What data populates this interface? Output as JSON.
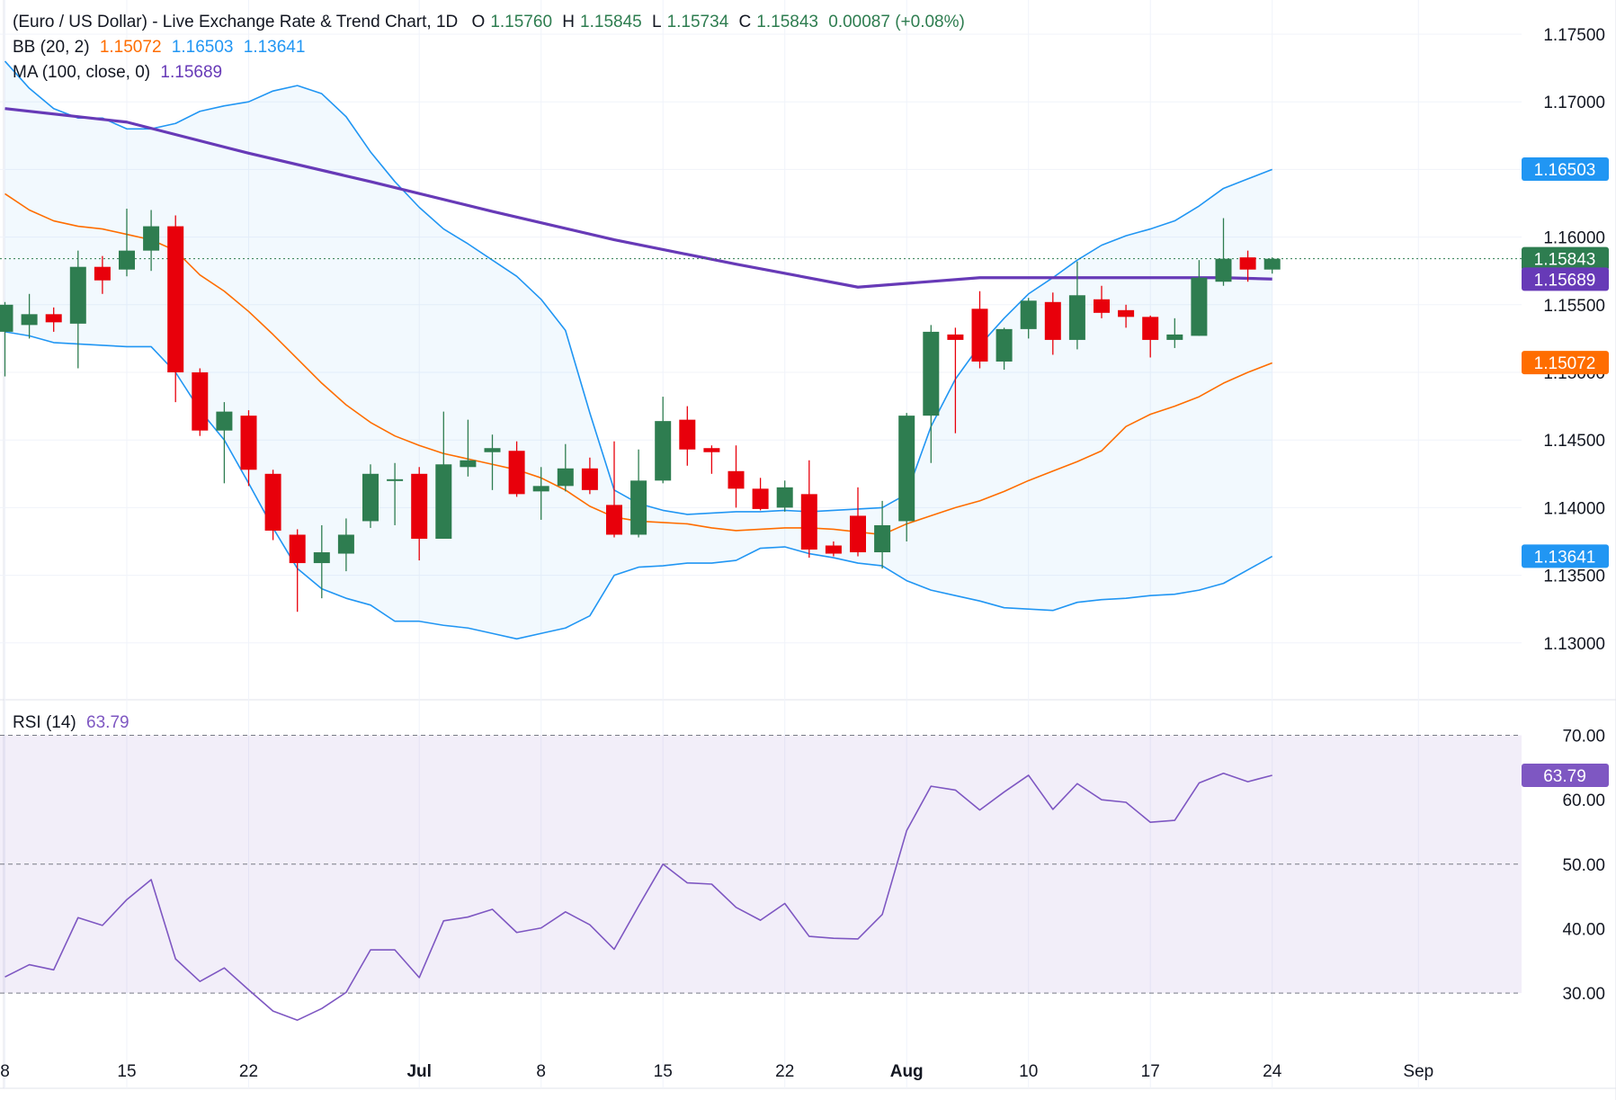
{
  "header": {
    "title": "(Euro / US Dollar) - Live Exchange Rate & Trend Chart, 1D",
    "ohlc": [
      {
        "label": "O",
        "value": "1.15760"
      },
      {
        "label": "H",
        "value": "1.15845"
      },
      {
        "label": "L",
        "value": "1.15734"
      },
      {
        "label": "C",
        "value": "1.15843"
      }
    ],
    "change": "0.00087 (+0.08%)",
    "bb_label": "BB (20, 2)",
    "bb_mid": "1.15072",
    "bb_upper": "1.16503",
    "bb_lower": "1.13641",
    "ma_label": "MA (100, close, 0)",
    "ma_value": "1.15689",
    "rsi_label": "RSI (14)",
    "rsi_value": "63.79"
  },
  "colors": {
    "up": "#2e7d50",
    "down": "#e8000b",
    "bb_band": "#2196f3",
    "bb_mid": "#ff6d00",
    "ma": "#673ab7",
    "rsi": "#7e57c2",
    "text": "#131722",
    "grid": "#f0f3fa"
  },
  "chart_data": [
    {
      "type": "candlestick",
      "title": "(Euro / US Dollar) - Live Exchange Rate & Trend Chart, 1D",
      "ylim": [
        1.1275,
        1.178
      ],
      "y_ticks": [
        "1.13000",
        "1.13500",
        "1.14000",
        "1.14500",
        "1.15000",
        "1.15500",
        "1.16000",
        "1.16500",
        "1.17000",
        "1.17500"
      ],
      "x_tick_labels": [
        {
          "label": "8",
          "i": -5
        },
        {
          "label": "15",
          "i": 0
        },
        {
          "label": "22",
          "i": 5
        },
        {
          "label": "Jul",
          "i": 12
        },
        {
          "label": "8",
          "i": 17
        },
        {
          "label": "15",
          "i": 22
        },
        {
          "label": "22",
          "i": 27
        },
        {
          "label": "Aug",
          "i": 32
        },
        {
          "label": "10",
          "i": 37
        },
        {
          "label": "17",
          "i": 42
        },
        {
          "label": "24",
          "i": 47
        },
        {
          "label": "Sep",
          "i": 53
        }
      ],
      "candles": [
        {
          "i": -5,
          "o": 1.153,
          "h": 1.1552,
          "l": 1.1497,
          "c": 1.155
        },
        {
          "i": -4,
          "o": 1.1535,
          "h": 1.1558,
          "l": 1.1525,
          "c": 1.1543
        },
        {
          "i": -3,
          "o": 1.1543,
          "h": 1.1548,
          "l": 1.153,
          "c": 1.1537
        },
        {
          "i": -2,
          "o": 1.1536,
          "h": 1.159,
          "l": 1.1503,
          "c": 1.1578
        },
        {
          "i": -1,
          "o": 1.1578,
          "h": 1.1586,
          "l": 1.1558,
          "c": 1.1568
        },
        {
          "i": 0,
          "o": 1.1576,
          "h": 1.1621,
          "l": 1.1571,
          "c": 1.159
        },
        {
          "i": 1,
          "o": 1.159,
          "h": 1.162,
          "l": 1.1575,
          "c": 1.1608
        },
        {
          "i": 2,
          "o": 1.1608,
          "h": 1.1616,
          "l": 1.1478,
          "c": 1.15
        },
        {
          "i": 3,
          "o": 1.15,
          "h": 1.1503,
          "l": 1.1453,
          "c": 1.1457
        },
        {
          "i": 4,
          "o": 1.1457,
          "h": 1.1478,
          "l": 1.1418,
          "c": 1.1471
        },
        {
          "i": 5,
          "o": 1.1468,
          "h": 1.1472,
          "l": 1.1416,
          "c": 1.1428
        },
        {
          "i": 6,
          "o": 1.1425,
          "h": 1.1428,
          "l": 1.1376,
          "c": 1.1383
        },
        {
          "i": 7,
          "o": 1.138,
          "h": 1.1384,
          "l": 1.1323,
          "c": 1.1359
        },
        {
          "i": 8,
          "o": 1.1359,
          "h": 1.1387,
          "l": 1.1333,
          "c": 1.1367
        },
        {
          "i": 9,
          "o": 1.1366,
          "h": 1.1392,
          "l": 1.1353,
          "c": 1.138
        },
        {
          "i": 10,
          "o": 1.139,
          "h": 1.1432,
          "l": 1.1385,
          "c": 1.1425
        },
        {
          "i": 11,
          "o": 1.1421,
          "h": 1.1433,
          "l": 1.1387,
          "c": 1.1421
        },
        {
          "i": 12,
          "o": 1.1425,
          "h": 1.143,
          "l": 1.1361,
          "c": 1.1377
        },
        {
          "i": 13,
          "o": 1.1377,
          "h": 1.1471,
          "l": 1.1377,
          "c": 1.1432
        },
        {
          "i": 14,
          "o": 1.143,
          "h": 1.1465,
          "l": 1.1423,
          "c": 1.1435
        },
        {
          "i": 15,
          "o": 1.1441,
          "h": 1.1454,
          "l": 1.1413,
          "c": 1.1444
        },
        {
          "i": 16,
          "o": 1.1442,
          "h": 1.1449,
          "l": 1.1408,
          "c": 1.141
        },
        {
          "i": 17,
          "o": 1.1412,
          "h": 1.143,
          "l": 1.1391,
          "c": 1.1416
        },
        {
          "i": 18,
          "o": 1.1416,
          "h": 1.1447,
          "l": 1.1412,
          "c": 1.1429
        },
        {
          "i": 19,
          "o": 1.1429,
          "h": 1.1437,
          "l": 1.141,
          "c": 1.1413
        },
        {
          "i": 20,
          "o": 1.1402,
          "h": 1.1449,
          "l": 1.1378,
          "c": 1.138
        },
        {
          "i": 21,
          "o": 1.138,
          "h": 1.1443,
          "l": 1.1378,
          "c": 1.142
        },
        {
          "i": 22,
          "o": 1.142,
          "h": 1.1482,
          "l": 1.1418,
          "c": 1.1464
        },
        {
          "i": 23,
          "o": 1.1465,
          "h": 1.1475,
          "l": 1.1431,
          "c": 1.1443
        },
        {
          "i": 24,
          "o": 1.1444,
          "h": 1.1446,
          "l": 1.1425,
          "c": 1.1441
        },
        {
          "i": 25,
          "o": 1.1427,
          "h": 1.1446,
          "l": 1.14,
          "c": 1.1414
        },
        {
          "i": 26,
          "o": 1.1414,
          "h": 1.1422,
          "l": 1.1398,
          "c": 1.1399
        },
        {
          "i": 27,
          "o": 1.14,
          "h": 1.142,
          "l": 1.1397,
          "c": 1.1415
        },
        {
          "i": 28,
          "o": 1.141,
          "h": 1.1435,
          "l": 1.1363,
          "c": 1.1369
        },
        {
          "i": 29,
          "o": 1.1372,
          "h": 1.1375,
          "l": 1.1364,
          "c": 1.1366
        },
        {
          "i": 30,
          "o": 1.1394,
          "h": 1.1415,
          "l": 1.1364,
          "c": 1.1367
        },
        {
          "i": 31,
          "o": 1.1367,
          "h": 1.1405,
          "l": 1.1355,
          "c": 1.1387
        },
        {
          "i": 32,
          "o": 1.139,
          "h": 1.147,
          "l": 1.1375,
          "c": 1.1468
        },
        {
          "i": 33,
          "o": 1.1468,
          "h": 1.1535,
          "l": 1.1433,
          "c": 1.153
        },
        {
          "i": 34,
          "o": 1.1528,
          "h": 1.1533,
          "l": 1.1455,
          "c": 1.1524
        },
        {
          "i": 35,
          "o": 1.1547,
          "h": 1.156,
          "l": 1.1503,
          "c": 1.1508
        },
        {
          "i": 36,
          "o": 1.1508,
          "h": 1.1533,
          "l": 1.1502,
          "c": 1.1532
        },
        {
          "i": 37,
          "o": 1.1532,
          "h": 1.1555,
          "l": 1.1525,
          "c": 1.1553
        },
        {
          "i": 38,
          "o": 1.1552,
          "h": 1.1559,
          "l": 1.1513,
          "c": 1.1524
        },
        {
          "i": 39,
          "o": 1.1524,
          "h": 1.1582,
          "l": 1.1517,
          "c": 1.1557
        },
        {
          "i": 40,
          "o": 1.1554,
          "h": 1.1564,
          "l": 1.154,
          "c": 1.1544
        },
        {
          "i": 41,
          "o": 1.1546,
          "h": 1.155,
          "l": 1.1533,
          "c": 1.1541
        },
        {
          "i": 42,
          "o": 1.1541,
          "h": 1.1542,
          "l": 1.1511,
          "c": 1.1524
        },
        {
          "i": 43,
          "o": 1.1524,
          "h": 1.154,
          "l": 1.1518,
          "c": 1.1528
        },
        {
          "i": 44,
          "o": 1.1527,
          "h": 1.1583,
          "l": 1.1527,
          "c": 1.157
        },
        {
          "i": 45,
          "o": 1.1567,
          "h": 1.1614,
          "l": 1.1564,
          "c": 1.1584
        },
        {
          "i": 46,
          "o": 1.1585,
          "h": 1.159,
          "l": 1.1567,
          "c": 1.1576
        },
        {
          "i": 47,
          "o": 1.1576,
          "h": 1.1585,
          "l": 1.1573,
          "c": 1.1584
        }
      ],
      "series": [
        {
          "name": "BB upper",
          "x": [
            -5,
            -4,
            -3,
            -2,
            -1,
            0,
            1,
            2,
            3,
            4,
            5,
            6,
            7,
            8,
            9,
            10,
            11,
            12,
            13,
            14,
            15,
            16,
            17,
            18,
            19,
            20,
            21,
            22,
            23,
            24,
            25,
            26,
            27,
            28,
            29,
            30,
            31,
            32,
            33,
            34,
            35,
            36,
            37,
            38,
            39,
            40,
            41,
            42,
            43,
            44,
            45,
            46,
            47
          ],
          "values": [
            1.173,
            1.171,
            1.1695,
            1.1688,
            1.1688,
            1.168,
            1.168,
            1.1684,
            1.1693,
            1.1697,
            1.17,
            1.1708,
            1.1712,
            1.1706,
            1.1689,
            1.1663,
            1.1641,
            1.1622,
            1.1606,
            1.1595,
            1.1583,
            1.1571,
            1.1554,
            1.1531,
            1.147,
            1.1413,
            1.1403,
            1.1398,
            1.1395,
            1.1396,
            1.1397,
            1.1397,
            1.1398,
            1.1397,
            1.1398,
            1.1399,
            1.14,
            1.141,
            1.146,
            1.1495,
            1.152,
            1.154,
            1.1558,
            1.157,
            1.1583,
            1.1594,
            1.1601,
            1.1606,
            1.1612,
            1.1623,
            1.1636,
            1.1643,
            1.165
          ]
        },
        {
          "name": "BB lower",
          "x": [
            -5,
            -4,
            -3,
            -2,
            -1,
            0,
            1,
            2,
            3,
            4,
            5,
            6,
            7,
            8,
            9,
            10,
            11,
            12,
            13,
            14,
            15,
            16,
            17,
            18,
            19,
            20,
            21,
            22,
            23,
            24,
            25,
            26,
            27,
            28,
            29,
            30,
            31,
            32,
            33,
            34,
            35,
            36,
            37,
            38,
            39,
            40,
            41,
            42,
            43,
            44,
            45,
            46,
            47
          ],
          "values": [
            1.153,
            1.1527,
            1.1522,
            1.1521,
            1.152,
            1.1519,
            1.1519,
            1.15,
            1.1472,
            1.145,
            1.1418,
            1.1385,
            1.1355,
            1.134,
            1.1333,
            1.1328,
            1.1316,
            1.1316,
            1.1313,
            1.1311,
            1.1307,
            1.1303,
            1.1307,
            1.1311,
            1.132,
            1.135,
            1.1356,
            1.1357,
            1.1359,
            1.1359,
            1.1361,
            1.137,
            1.1371,
            1.1366,
            1.1363,
            1.1359,
            1.1357,
            1.1346,
            1.1339,
            1.1335,
            1.1331,
            1.1326,
            1.1325,
            1.1324,
            1.133,
            1.1332,
            1.1333,
            1.1335,
            1.1336,
            1.1339,
            1.1344,
            1.1354,
            1.1364
          ]
        },
        {
          "name": "BB basis",
          "x": [
            -5,
            -4,
            -3,
            -2,
            -1,
            0,
            1,
            2,
            3,
            4,
            5,
            6,
            7,
            8,
            9,
            10,
            11,
            12,
            13,
            14,
            15,
            16,
            17,
            18,
            19,
            20,
            21,
            22,
            23,
            24,
            25,
            26,
            27,
            28,
            29,
            30,
            31,
            32,
            33,
            34,
            35,
            36,
            37,
            38,
            39,
            40,
            41,
            42,
            43,
            44,
            45,
            46,
            47
          ],
          "values": [
            1.1632,
            1.162,
            1.1612,
            1.1608,
            1.1606,
            1.1602,
            1.1598,
            1.159,
            1.1572,
            1.156,
            1.1545,
            1.1528,
            1.151,
            1.1492,
            1.1476,
            1.1463,
            1.1453,
            1.1446,
            1.144,
            1.1436,
            1.1432,
            1.1428,
            1.1422,
            1.1413,
            1.1401,
            1.1393,
            1.139,
            1.1389,
            1.1388,
            1.1385,
            1.1383,
            1.1384,
            1.1385,
            1.1385,
            1.1384,
            1.1382,
            1.138,
            1.1388,
            1.1394,
            1.14,
            1.1405,
            1.1412,
            1.142,
            1.1427,
            1.1434,
            1.1442,
            1.146,
            1.1469,
            1.1475,
            1.1482,
            1.1492,
            1.15,
            1.1507
          ]
        },
        {
          "name": "MA 100",
          "x": [
            -5,
            0,
            5,
            10,
            15,
            20,
            25,
            30,
            35,
            40,
            45,
            47
          ],
          "values": [
            1.1695,
            1.1685,
            1.1662,
            1.1641,
            1.1619,
            1.1598,
            1.158,
            1.1563,
            1.157,
            1.157,
            1.157,
            1.1569
          ]
        }
      ]
    },
    {
      "type": "line",
      "title": "RSI (14)",
      "ylim": [
        25,
        75
      ],
      "y_ticks": [
        "30.00",
        "40.00",
        "50.00",
        "60.00",
        "70.00"
      ],
      "band": [
        30,
        70
      ],
      "series": [
        {
          "name": "RSI (14)",
          "x": [
            -5,
            -4,
            -3,
            -2,
            -1,
            0,
            1,
            2,
            3,
            4,
            5,
            6,
            7,
            8,
            9,
            10,
            11,
            12,
            13,
            14,
            15,
            16,
            17,
            18,
            19,
            20,
            21,
            22,
            23,
            24,
            25,
            26,
            27,
            28,
            29,
            30,
            31,
            32,
            33,
            34,
            35,
            36,
            37,
            38,
            39,
            40,
            41,
            42,
            43,
            44,
            45,
            46,
            47
          ],
          "values": [
            32.5,
            34.4,
            33.6,
            41.7,
            40.5,
            44.5,
            47.6,
            35.3,
            31.8,
            33.9,
            30.5,
            27.2,
            25.8,
            27.6,
            30.1,
            36.7,
            36.7,
            32.4,
            41.2,
            41.8,
            43.0,
            39.4,
            40.1,
            42.6,
            40.6,
            36.8,
            43.5,
            50.0,
            47.1,
            46.9,
            43.3,
            41.3,
            43.9,
            38.8,
            38.5,
            38.4,
            42.2,
            55.2,
            62.1,
            61.5,
            58.4,
            61.2,
            63.8,
            58.5,
            62.5,
            60.0,
            59.6,
            56.5,
            56.8,
            62.6,
            64.1,
            62.8,
            63.79
          ]
        }
      ]
    }
  ]
}
